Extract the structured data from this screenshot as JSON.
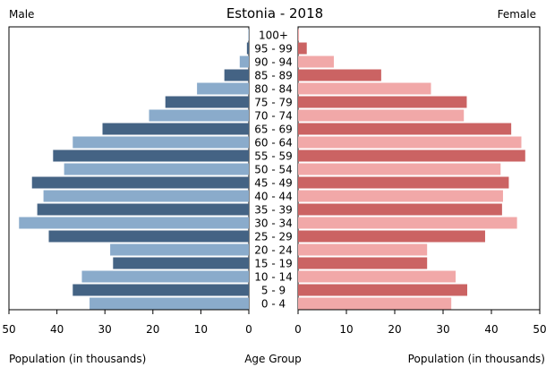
{
  "chart_data": {
    "type": "bar",
    "title": "Estonia - 2018",
    "left_label": "Male",
    "right_label": "Female",
    "xlabel_left": "Population (in thousands)",
    "xlabel_center": "Age Group",
    "xlabel_right": "Population (in thousands)",
    "xlim": [
      0,
      50
    ],
    "xticks": [
      50,
      40,
      30,
      20,
      10,
      0
    ],
    "xticks_right": [
      0,
      10,
      20,
      30,
      40,
      50
    ],
    "categories": [
      "100+",
      "95 - 99",
      "90 - 94",
      "85 - 89",
      "80 - 84",
      "75 - 79",
      "70 - 74",
      "65 - 69",
      "60 - 64",
      "55 - 59",
      "50 - 54",
      "45 - 49",
      "40 - 44",
      "35 - 39",
      "30 - 34",
      "25 - 29",
      "20 - 24",
      "15 - 19",
      "10 - 14",
      "5 - 9",
      "0 - 4"
    ],
    "series": [
      {
        "name": "Male",
        "values": [
          0.1,
          0.4,
          1.9,
          5.1,
          10.8,
          17.4,
          20.8,
          30.5,
          36.7,
          40.8,
          38.5,
          45.2,
          42.8,
          44.1,
          47.9,
          41.7,
          28.9,
          28.3,
          34.8,
          36.7,
          33.2
        ],
        "colors": [
          "#8aabcb",
          "#446384"
        ]
      },
      {
        "name": "Female",
        "values": [
          0.2,
          1.8,
          7.4,
          17.2,
          27.5,
          34.9,
          34.3,
          44.1,
          46.2,
          47.0,
          41.9,
          43.6,
          42.4,
          42.2,
          45.3,
          38.7,
          26.7,
          26.7,
          32.6,
          35.0,
          31.7
        ],
        "colors": [
          "#f1a8a8",
          "#cb6363"
        ]
      }
    ],
    "grid": false,
    "legend": "none"
  }
}
